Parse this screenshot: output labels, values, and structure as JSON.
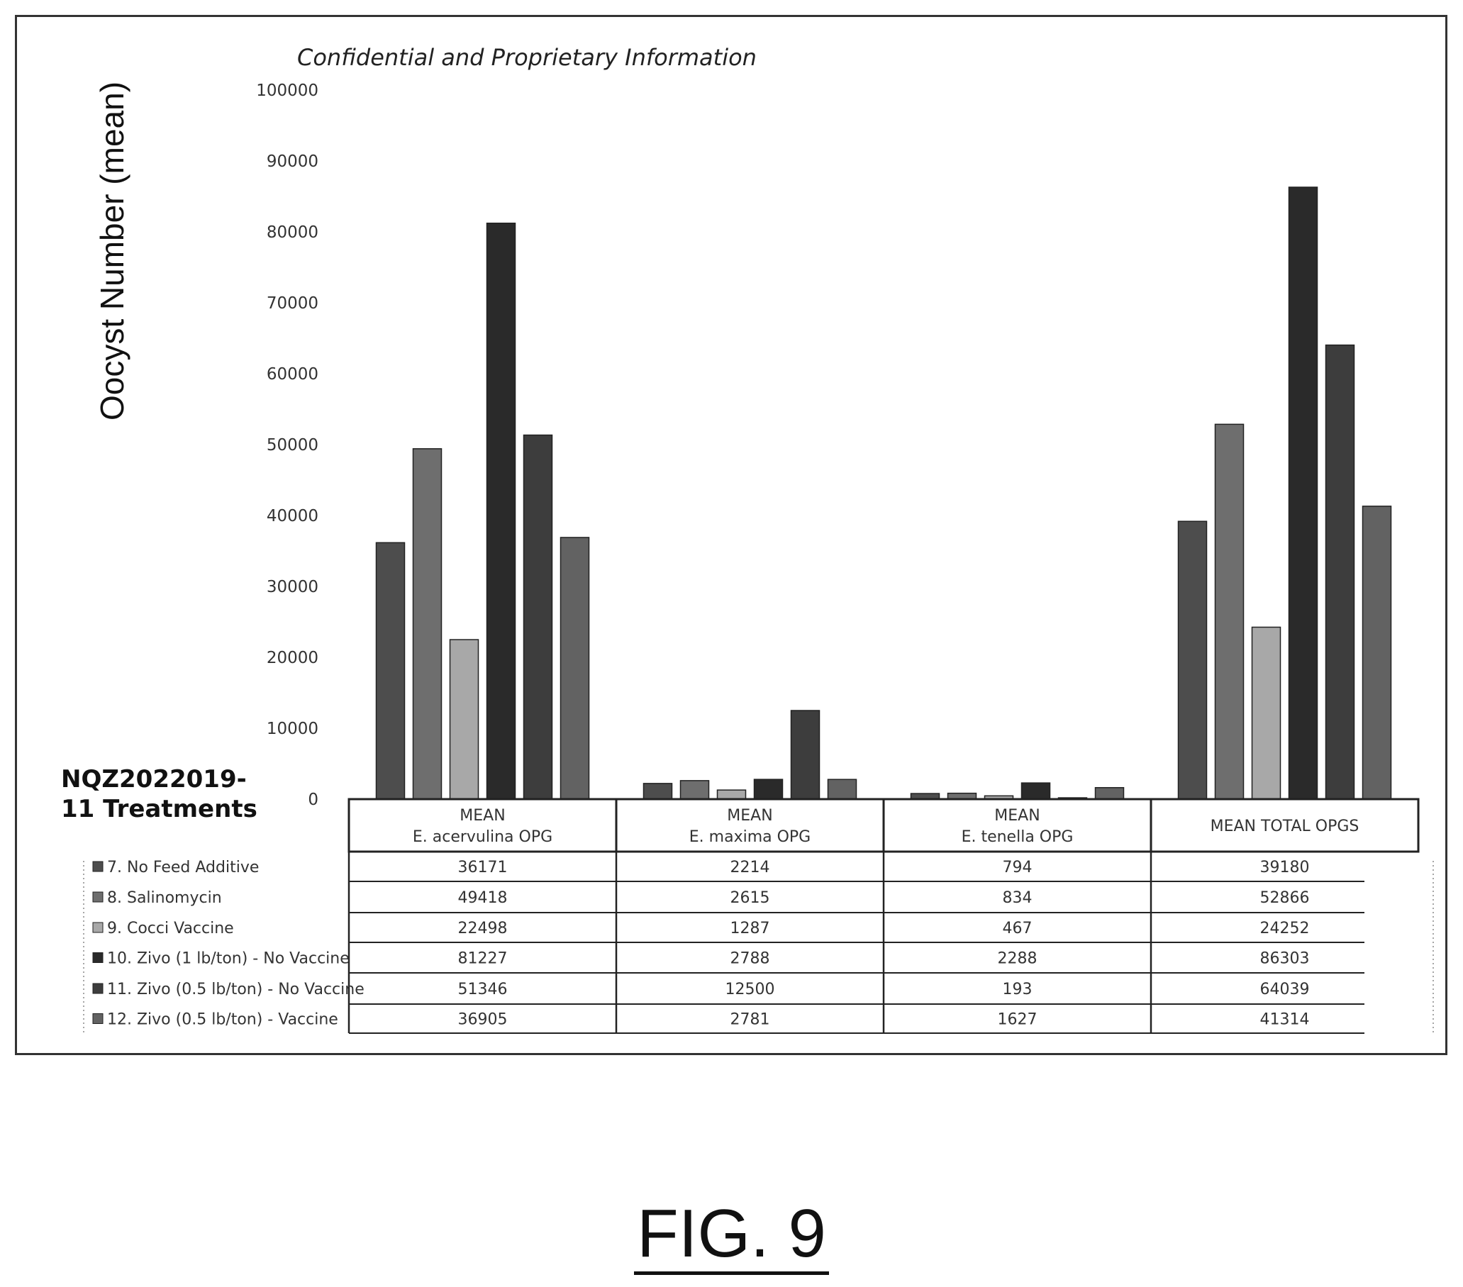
{
  "header": {
    "note": "Confidential and Proprietary Information",
    "study_line1": "NQZ2022019-",
    "study_line2": "11 Treatments"
  },
  "figure_label": "FIG. 9",
  "chart_data": {
    "type": "bar",
    "title": "",
    "ylabel": "Oocyst Number (mean)",
    "xlabel": "",
    "ylim": [
      0,
      100000
    ],
    "yticks": [
      0,
      10000,
      20000,
      30000,
      40000,
      50000,
      60000,
      70000,
      80000,
      90000,
      100000
    ],
    "grid": false,
    "legend": "table-left",
    "categories": [
      {
        "line1": "MEAN",
        "line2": "E. acervulina OPG"
      },
      {
        "line1": "MEAN",
        "line2": "E. maxima OPG"
      },
      {
        "line1": "MEAN",
        "line2": "E. tenella OPG"
      },
      {
        "line1": "MEAN TOTAL OPGS",
        "line2": ""
      }
    ],
    "series": [
      {
        "name": "7.    No Feed Additive",
        "color": "#4d4d4d",
        "values": [
          36171,
          2214,
          794,
          39180
        ]
      },
      {
        "name": "8.    Salinomycin",
        "color": "#6e6e6e",
        "values": [
          49418,
          2615,
          834,
          52866
        ]
      },
      {
        "name": "9.    Cocci Vaccine",
        "color": "#a8a8a8",
        "values": [
          22498,
          1287,
          467,
          24252
        ]
      },
      {
        "name": "10.  Zivo (1 lb/ton) - No Vaccine",
        "color": "#2a2a2a",
        "values": [
          81227,
          2788,
          2288,
          86303
        ]
      },
      {
        "name": "11.  Zivo (0.5 lb/ton) - No Vaccine",
        "color": "#3d3d3d",
        "values": [
          51346,
          12500,
          193,
          64039
        ]
      },
      {
        "name": "12.  Zivo (0.5 lb/ton) - Vaccine",
        "color": "#626262",
        "values": [
          36905,
          2781,
          1627,
          41314
        ]
      }
    ]
  }
}
